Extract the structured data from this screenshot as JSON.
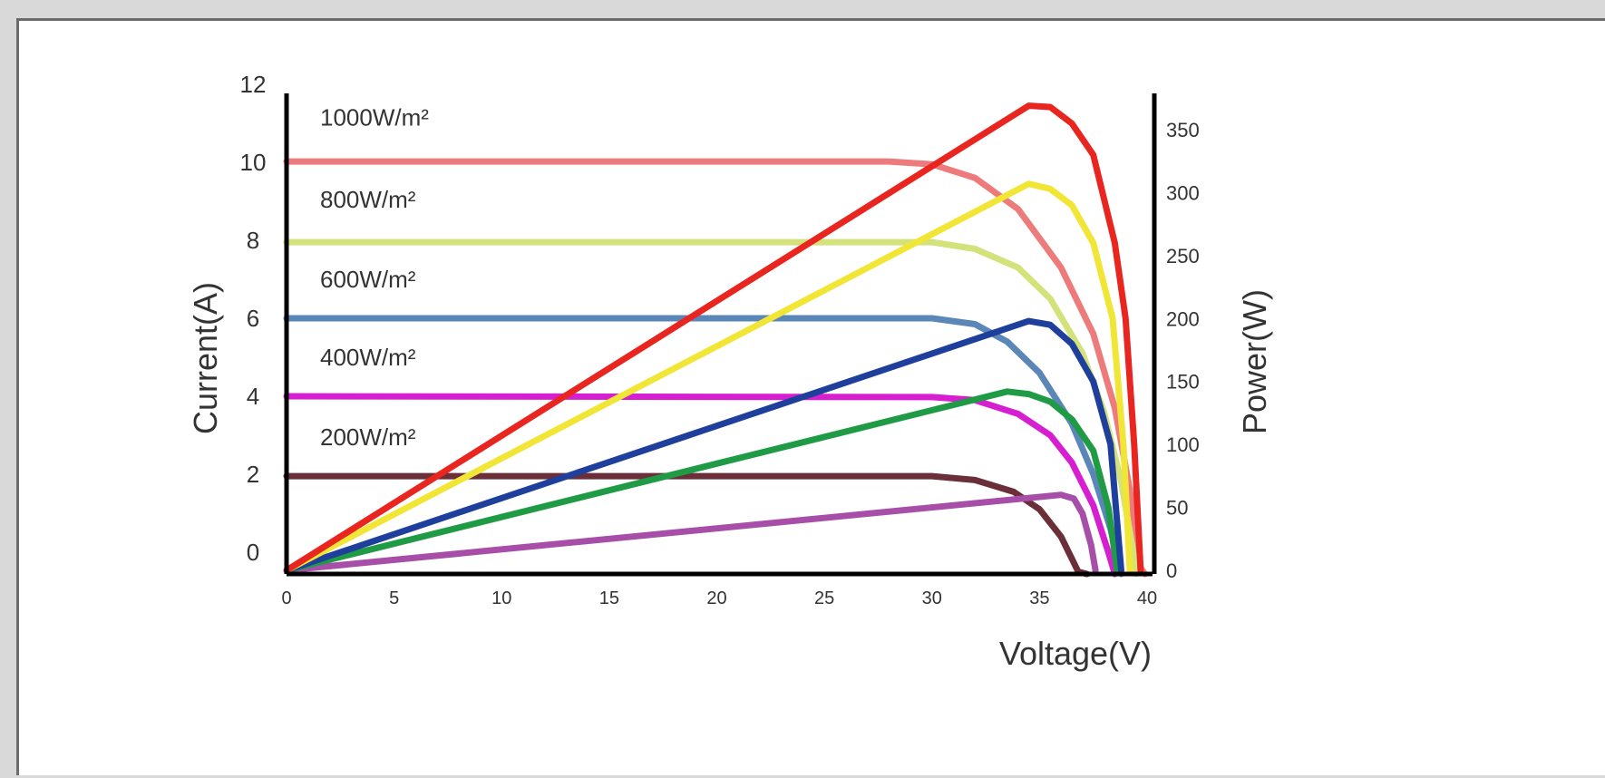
{
  "chart_data": {
    "type": "line",
    "title": "",
    "xlabel": "Voltage(V)",
    "ylabel": "Current(A)",
    "y2label": "Power(W)",
    "xlim": [
      0,
      40
    ],
    "ylim": [
      -1.1,
      12
    ],
    "y2lim": [
      0,
      350
    ],
    "xticks": [
      "0",
      "5",
      "10",
      "15",
      "20",
      "25",
      "30",
      "35",
      "40"
    ],
    "yticks": [
      "0",
      "2",
      "4",
      "6",
      "8",
      "10",
      "12"
    ],
    "y2ticks": [
      "0",
      "50",
      "100",
      "150",
      "200",
      "250",
      "300",
      "350"
    ],
    "grid": false,
    "irradiance_labels": [
      {
        "text": "1000W/m²",
        "y": 11.15
      },
      {
        "text": "800W/m²",
        "y": 9.05
      },
      {
        "text": "600W/m²",
        "y": 7.0
      },
      {
        "text": "400W/m²",
        "y": 5.0
      },
      {
        "text": "200W/m²",
        "y": 2.95
      }
    ],
    "current_series": [
      {
        "name": "1000W/m²",
        "color": "#ee7b7b",
        "points": [
          [
            0,
            10.02
          ],
          [
            28,
            10.02
          ],
          [
            30,
            9.95
          ],
          [
            32,
            9.6
          ],
          [
            34,
            8.8
          ],
          [
            36,
            7.3
          ],
          [
            37.5,
            5.6
          ],
          [
            38.5,
            3.7
          ],
          [
            39.2,
            1.6
          ],
          [
            39.7,
            -0.4
          ],
          [
            39.9,
            -1.1
          ]
        ]
      },
      {
        "name": "800W/m²",
        "color": "#d4e27c",
        "points": [
          [
            0,
            7.95
          ],
          [
            30,
            7.95
          ],
          [
            32,
            7.78
          ],
          [
            34,
            7.3
          ],
          [
            35.5,
            6.5
          ],
          [
            37,
            5.1
          ],
          [
            38,
            3.6
          ],
          [
            38.8,
            1.8
          ],
          [
            39.3,
            0.2
          ],
          [
            39.5,
            -1.1
          ]
        ]
      },
      {
        "name": "600W/m²",
        "color": "#5b86b8",
        "points": [
          [
            0,
            6.0
          ],
          [
            30,
            6.0
          ],
          [
            32,
            5.85
          ],
          [
            33.5,
            5.4
          ],
          [
            35,
            4.6
          ],
          [
            36.5,
            3.3
          ],
          [
            37.5,
            2.0
          ],
          [
            38.3,
            0.6
          ],
          [
            38.8,
            -1.1
          ]
        ]
      },
      {
        "name": "400W/m²",
        "color": "#d61fd0",
        "points": [
          [
            0,
            4.0
          ],
          [
            30,
            3.98
          ],
          [
            32,
            3.9
          ],
          [
            34,
            3.55
          ],
          [
            35.5,
            3.0
          ],
          [
            36.5,
            2.3
          ],
          [
            37.5,
            1.2
          ],
          [
            38.2,
            0.0
          ],
          [
            38.5,
            -1.1
          ]
        ]
      },
      {
        "name": "200W/m²",
        "color": "#6b2f3a",
        "points": [
          [
            0,
            1.95
          ],
          [
            30,
            1.95
          ],
          [
            32,
            1.85
          ],
          [
            33.8,
            1.55
          ],
          [
            35,
            1.1
          ],
          [
            36,
            0.4
          ],
          [
            36.8,
            -0.5
          ],
          [
            37.2,
            -1.1
          ]
        ]
      }
    ],
    "power_series": [
      {
        "name": "1000W/m²",
        "color": "#e8251f",
        "points": [
          [
            0,
            0
          ],
          [
            34.5,
            369
          ],
          [
            35.5,
            368
          ],
          [
            36.5,
            355
          ],
          [
            37.5,
            330
          ],
          [
            38.5,
            260
          ],
          [
            39,
            200
          ],
          [
            39.4,
            100
          ],
          [
            39.7,
            0
          ]
        ]
      },
      {
        "name": "800W/m²",
        "color": "#f1e636",
        "points": [
          [
            0,
            0
          ],
          [
            34.5,
            307
          ],
          [
            35.5,
            303
          ],
          [
            36.5,
            290
          ],
          [
            37.5,
            260
          ],
          [
            38.4,
            200
          ],
          [
            38.9,
            100
          ],
          [
            39.2,
            0
          ]
        ]
      },
      {
        "name": "600W/m²",
        "color": "#1f3f9c",
        "points": [
          [
            0,
            0
          ],
          [
            34.5,
            198
          ],
          [
            35.5,
            195
          ],
          [
            36.5,
            180
          ],
          [
            37.5,
            150
          ],
          [
            38.3,
            100
          ],
          [
            38.8,
            0
          ]
        ]
      },
      {
        "name": "400W/m²",
        "color": "#1f9b46",
        "points": [
          [
            0,
            0
          ],
          [
            33.5,
            142
          ],
          [
            34.5,
            140
          ],
          [
            35.5,
            134
          ],
          [
            36.5,
            120
          ],
          [
            37.5,
            95
          ],
          [
            38.2,
            50
          ],
          [
            38.6,
            0
          ]
        ]
      },
      {
        "name": "200W/m²",
        "color": "#a74ea8",
        "points": [
          [
            0,
            0
          ],
          [
            36,
            60
          ],
          [
            36.6,
            57
          ],
          [
            37,
            45
          ],
          [
            37.4,
            20
          ],
          [
            37.6,
            0
          ]
        ]
      }
    ],
    "colors": {
      "axis": "#000000",
      "text": "#333333",
      "frame": "#6b6b6b"
    }
  }
}
